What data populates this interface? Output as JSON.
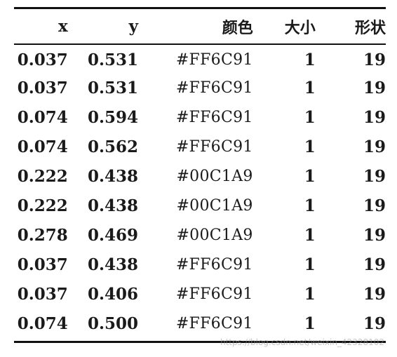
{
  "table": {
    "headers": [
      "x",
      "y",
      "颜色",
      "大小",
      "形状"
    ],
    "rows": [
      {
        "x": "0.037",
        "y": "0.531",
        "color": "#FF6C91",
        "size": "1",
        "shape": "19"
      },
      {
        "x": "0.037",
        "y": "0.531",
        "color": "#FF6C91",
        "size": "1",
        "shape": "19"
      },
      {
        "x": "0.074",
        "y": "0.594",
        "color": "#FF6C91",
        "size": "1",
        "shape": "19"
      },
      {
        "x": "0.074",
        "y": "0.562",
        "color": "#FF6C91",
        "size": "1",
        "shape": "19"
      },
      {
        "x": "0.222",
        "y": "0.438",
        "color": "#00C1A9",
        "size": "1",
        "shape": "19"
      },
      {
        "x": "0.222",
        "y": "0.438",
        "color": "#00C1A9",
        "size": "1",
        "shape": "19"
      },
      {
        "x": "0.278",
        "y": "0.469",
        "color": "#00C1A9",
        "size": "1",
        "shape": "19"
      },
      {
        "x": "0.037",
        "y": "0.438",
        "color": "#FF6C91",
        "size": "1",
        "shape": "19"
      },
      {
        "x": "0.037",
        "y": "0.406",
        "color": "#FF6C91",
        "size": "1",
        "shape": "19"
      },
      {
        "x": "0.074",
        "y": "0.500",
        "color": "#FF6C91",
        "size": "1",
        "shape": "19"
      }
    ]
  },
  "watermark": "https://blog.csdn.net/weixin_42328102"
}
